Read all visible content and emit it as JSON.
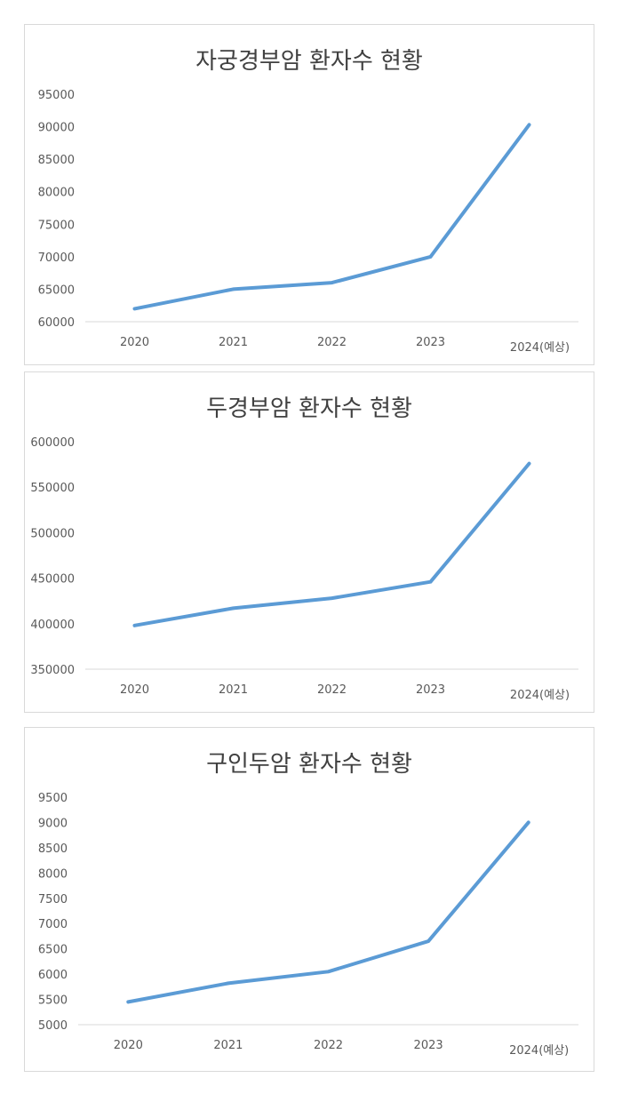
{
  "chart_data": [
    {
      "type": "line",
      "title": "자궁경부암 환자수 현황",
      "categories": [
        "2020",
        "2021",
        "2022",
        "2023",
        "2024(예상)"
      ],
      "series": [
        {
          "values": [
            62000,
            65000,
            66000,
            70000,
            90300
          ]
        }
      ],
      "ylim": [
        60000,
        95000
      ],
      "yticks": [
        60000,
        65000,
        70000,
        75000,
        80000,
        85000,
        90000,
        95000
      ],
      "line_color": "#5b9bd5",
      "grid": false
    },
    {
      "type": "line",
      "title": "두경부암 환자수 현황",
      "categories": [
        "2020",
        "2021",
        "2022",
        "2023",
        "2024(예상)"
      ],
      "series": [
        {
          "values": [
            398000,
            417000,
            428000,
            446000,
            576000
          ]
        }
      ],
      "ylim": [
        350000,
        600000
      ],
      "yticks": [
        350000,
        400000,
        450000,
        500000,
        550000,
        600000
      ],
      "line_color": "#5b9bd5",
      "grid": false
    },
    {
      "type": "line",
      "title": "구인두암 환자수 현황",
      "categories": [
        "2020",
        "2021",
        "2022",
        "2023",
        "2024(예상)"
      ],
      "series": [
        {
          "values": [
            5450,
            5820,
            6050,
            6650,
            9000
          ]
        }
      ],
      "ylim": [
        5000,
        9500
      ],
      "yticks": [
        5000,
        5500,
        6000,
        6500,
        7000,
        7500,
        8000,
        8500,
        9000,
        9500
      ],
      "line_color": "#5b9bd5",
      "grid": false
    }
  ]
}
